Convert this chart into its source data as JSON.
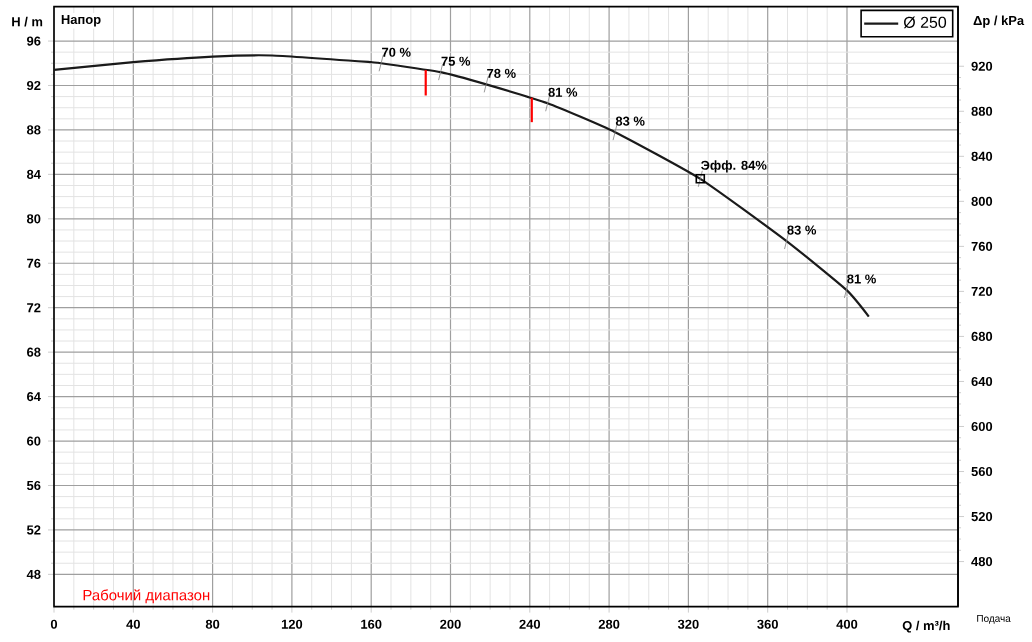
{
  "chart_data": {
    "type": "line",
    "ylabel": "H / m",
    "y2label": "Δp / kPa",
    "xlabel": "Q / m³/h",
    "xlim": [
      0,
      456
    ],
    "xticks": [
      0,
      40,
      80,
      120,
      160,
      200,
      240,
      280,
      320,
      360,
      400
    ],
    "ylim": [
      45.1,
      99.1
    ],
    "yticks": [
      48,
      52,
      56,
      60,
      64,
      68,
      72,
      76,
      80,
      84,
      88,
      92,
      96
    ],
    "y2lim": [
      440,
      973
    ],
    "y2ticks": [
      480,
      520,
      560,
      600,
      640,
      680,
      720,
      760,
      800,
      840,
      880,
      920
    ],
    "grid": true,
    "legend": "top right",
    "series": [
      {
        "name": "Ø 250",
        "color": "#1a1a1a",
        "marker": "none",
        "x": [
          0,
          40,
          80,
          110,
          160,
          165,
          195,
          218,
          249,
          283,
          326,
          369.5,
          399.7,
          411
        ],
        "values": [
          93.4,
          94.1,
          94.6,
          94.7,
          94.1,
          94.0,
          93.2,
          92.1,
          90.4,
          87.8,
          83.6,
          78.0,
          73.6,
          71.2
        ]
      },
      {
        "type": "scatter",
        "color": "#000000",
        "marker": "square",
        "x": [
          326
        ],
        "values": [
          83.6
        ]
      },
      {
        "type": "line",
        "color": "#ff0000",
        "marker": "none",
        "x": [
          187.5,
          187.5
        ],
        "values": [
          93.4,
          91.1
        ]
      },
      {
        "type": "line",
        "color": "#ff0000",
        "marker": "none",
        "x": [
          241,
          241
        ],
        "values": [
          90.9,
          88.7
        ]
      }
    ],
    "annotations": [
      "Напор",
      "Подача",
      "Рабочий диапазон",
      {
        "text": "70 %",
        "x": 165,
        "y": 94.0
      },
      {
        "text": "75 %",
        "x": 195,
        "y": 93.2
      },
      {
        "text": "78 %",
        "x": 218,
        "y": 92.1
      },
      {
        "text": "81 %",
        "x": 249,
        "y": 90.4
      },
      {
        "text": "83 %",
        "x": 283,
        "y": 87.8
      },
      {
        "text": "Эфф.  84%",
        "x": 326,
        "y": 83.6
      },
      {
        "text": "83 %",
        "x": 369.5,
        "y": 78.0
      },
      {
        "text": "81 %",
        "x": 399.7,
        "y": 73.6
      }
    ]
  }
}
